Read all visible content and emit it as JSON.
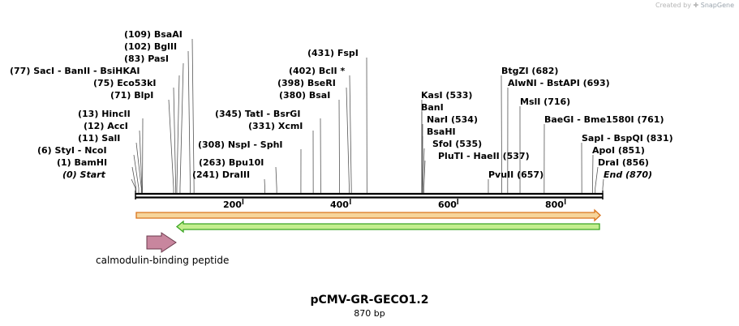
{
  "credit": {
    "prefix": "Created by",
    "brand": "SnapGene"
  },
  "plasmid": {
    "name": "pCMV-GR-GECO1.2",
    "length_label": "870 bp",
    "length": 870
  },
  "axis": {
    "ticks": [
      "200",
      "400",
      "600",
      "800"
    ]
  },
  "feature": {
    "label": "calmodulin-binding peptide",
    "color": "#c8869e"
  },
  "colors": {
    "orf_top_fill": "#f6d59b",
    "orf_top_stroke": "#d9731c",
    "orf_bottom_fill": "#c4ee8e",
    "orf_bottom_stroke": "#3aa524",
    "backbone": "#000000"
  },
  "sites": [
    {
      "text": "(109)  BsaAI",
      "pos": 109
    },
    {
      "text": "(102)  BglII",
      "pos": 102
    },
    {
      "text": "(83)  PasI",
      "pos": 83
    },
    {
      "text": "(77)  SacI  -  BanII  -  BsiHKAI",
      "pos": 77
    },
    {
      "text": "(75)  Eco53kI",
      "pos": 75
    },
    {
      "text": "(71)  BlpI",
      "pos": 71
    },
    {
      "text": "(13)  HincII",
      "pos": 13
    },
    {
      "text": "(12)  AccI",
      "pos": 12
    },
    {
      "text": "(11)  SalI",
      "pos": 11
    },
    {
      "text": "(6)  StyI  -  NcoI",
      "pos": 6
    },
    {
      "text": "(1)  BamHI",
      "pos": 1
    },
    {
      "text": "(0)  Start",
      "pos": 0
    },
    {
      "text": "(431)  FspI",
      "pos": 431
    },
    {
      "text": "(402)  BclI *",
      "pos": 402
    },
    {
      "text": "(398)  BseRI",
      "pos": 398
    },
    {
      "text": "(380)  BsaI",
      "pos": 380
    },
    {
      "text": "(345)  TatI  -  BsrGI",
      "pos": 345
    },
    {
      "text": "(331)  XcmI",
      "pos": 331
    },
    {
      "text": "(308)  NspI  -  SphI",
      "pos": 308
    },
    {
      "text": "(263)  Bpu10I",
      "pos": 263
    },
    {
      "text": "(241)  DraIII",
      "pos": 241
    },
    {
      "text": "KasI  (533)",
      "pos": 533
    },
    {
      "text": "BanI",
      "pos": 533
    },
    {
      "text": "NarI  (534)",
      "pos": 534
    },
    {
      "text": "BsaHI",
      "pos": 534
    },
    {
      "text": "SfoI  (535)",
      "pos": 535
    },
    {
      "text": "PluTI  -  HaeII  (537)",
      "pos": 537
    },
    {
      "text": "PvuII  (657)",
      "pos": 657
    },
    {
      "text": "BtgZI  (682)",
      "pos": 682
    },
    {
      "text": "AlwNI  -  BstAPI  (693)",
      "pos": 693
    },
    {
      "text": "MslI  (716)",
      "pos": 716
    },
    {
      "text": "BaeGI  -  Bme1580I  (761)",
      "pos": 761
    },
    {
      "text": "SapI  -  BspQI  (831)",
      "pos": 831
    },
    {
      "text": "ApoI  (851)",
      "pos": 851
    },
    {
      "text": "DraI  (856)",
      "pos": 856
    },
    {
      "text": "End  (870)",
      "pos": 870
    }
  ]
}
